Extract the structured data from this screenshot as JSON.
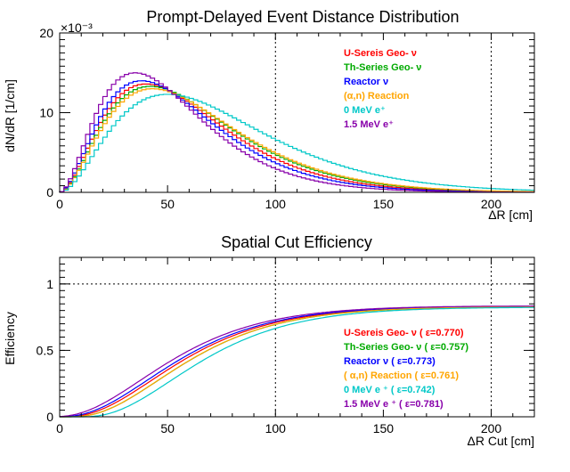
{
  "chart_data": [
    {
      "type": "line",
      "title": "Prompt-Delayed Event Distance Distribution",
      "xlabel": "ΔR [cm]",
      "ylabel": "dN/dR [1/cm]",
      "y_multiplier": "×10⁻³",
      "xlim": [
        0,
        220
      ],
      "ylim": [
        0,
        20
      ],
      "xticks": [
        "0",
        "50",
        "100",
        "150",
        "200"
      ],
      "yticks": [
        "0",
        "10",
        "20"
      ],
      "grid_lines_x": [
        100,
        200
      ],
      "legend_position": "top-right",
      "series": [
        {
          "name": "U-Sereis Geo- ν",
          "color": "#ff0000",
          "peak_x": 40,
          "peak_y": 13.6
        },
        {
          "name": "Th-Series Geo- ν",
          "color": "#00aa00",
          "peak_x": 42,
          "peak_y": 13.3
        },
        {
          "name": "Reactor ν",
          "color": "#0000ff",
          "peak_x": 38,
          "peak_y": 14.0
        },
        {
          "name": "(α,n) Reaction",
          "color": "#ffa500",
          "peak_x": 43,
          "peak_y": 13.0
        },
        {
          "name": "0 MeV e⁺",
          "color": "#00c8c8",
          "peak_x": 50,
          "peak_y": 12.3
        },
        {
          "name": "1.5 MeV e⁺",
          "color": "#8800aa",
          "peak_x": 35,
          "peak_y": 15.0
        }
      ]
    },
    {
      "type": "line",
      "title": "Spatial Cut Efficiency",
      "xlabel": "ΔR Cut [cm]",
      "ylabel": "Efficiency",
      "xlim": [
        0,
        220
      ],
      "ylim": [
        0,
        1.2
      ],
      "xticks": [
        "0",
        "50",
        "100",
        "150",
        "200"
      ],
      "yticks": [
        "0",
        "0.5",
        "1"
      ],
      "grid_lines_x": [
        100,
        200
      ],
      "grid_lines_y": [
        1
      ],
      "legend_position": "bottom-right",
      "series": [
        {
          "name": "U-Sereis Geo- ν ( ε=0.770)",
          "color": "#ff0000",
          "shift": 0,
          "plateau": 0.83
        },
        {
          "name": "Th-Series Geo- ν ( ε=0.757)",
          "color": "#00aa00",
          "shift": 3,
          "plateau": 0.828
        },
        {
          "name": "Reactor ν ( ε=0.773)",
          "color": "#0000ff",
          "shift": -2,
          "plateau": 0.832
        },
        {
          "name": "( α,n) Reaction ( ε=0.761)",
          "color": "#ffa500",
          "shift": 3,
          "plateau": 0.829
        },
        {
          "name": "0 MeV e ⁺ ( ε=0.742)",
          "color": "#00c8c8",
          "shift": 9,
          "plateau": 0.825
        },
        {
          "name": "1.5 MeV e ⁺ ( ε=0.781)",
          "color": "#8800aa",
          "shift": -5,
          "plateau": 0.835
        }
      ]
    }
  ]
}
